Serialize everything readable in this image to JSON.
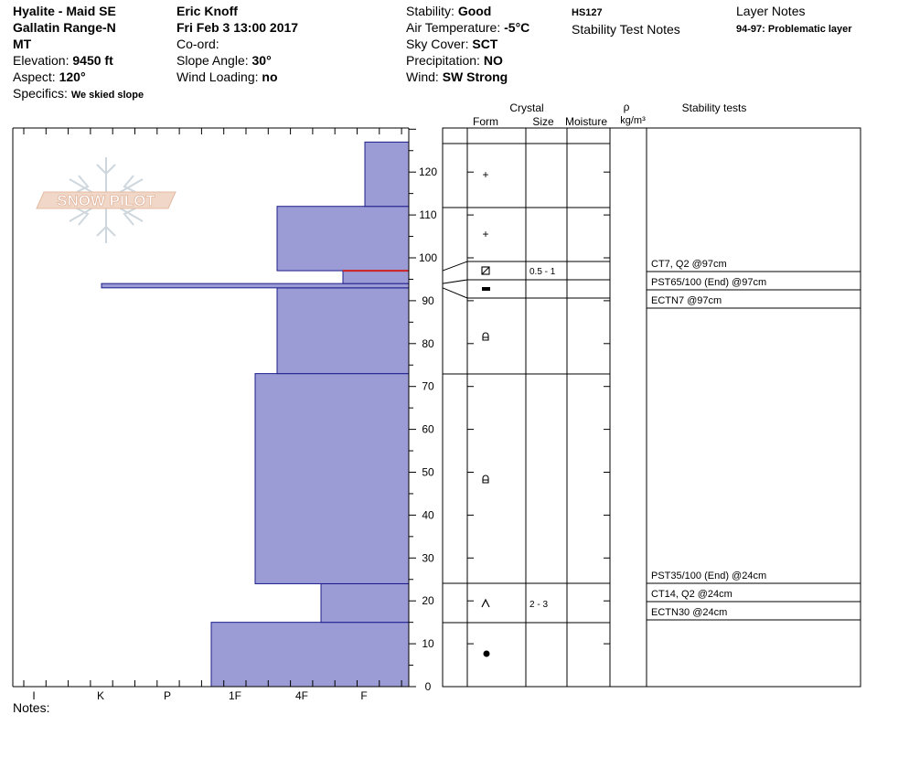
{
  "header": {
    "col1": {
      "location": "Hyalite - Maid SE",
      "range": "Gallatin Range-N",
      "state": "MT",
      "elevation_label": "Elevation: ",
      "elevation": "9450 ft",
      "aspect_label": "Aspect: ",
      "aspect": "120°",
      "specifics_label": "Specifics: ",
      "specifics": "We skied slope"
    },
    "col2": {
      "observer": "Eric Knoff",
      "datetime": "Fri Feb 3 13:00 2017",
      "coord_label": "Co-ord:",
      "slope_label": "Slope Angle: ",
      "slope": "30°",
      "wind_loading_label": "Wind Loading: ",
      "wind_loading": "no"
    },
    "col3": {
      "stability_label": "Stability: ",
      "stability": "Good",
      "air_temp_label": "Air Temperature: ",
      "air_temp": "-5°C",
      "sky_label": "Sky Cover: ",
      "sky": "SCT",
      "precip_label": "Precipitation: ",
      "precip": "NO",
      "wind_label": "Wind:  ",
      "wind": "SW Strong"
    },
    "col4": {
      "hs": "HS127",
      "stability_notes": "Stability Test Notes"
    },
    "col5": {
      "layer_notes_title": "Layer Notes",
      "layer_note_range": "94-97:",
      "layer_note_text": " Problematic layer"
    }
  },
  "columns": {
    "crystal": "Crystal",
    "form": "Form",
    "size": "Size",
    "moisture": "Moisture",
    "rho": "ρ",
    "density_unit": "kg/m³",
    "stability_tests": "Stability tests"
  },
  "logo_text": "SNOW PILOT",
  "notes_label": "Notes:",
  "chart_data": {
    "type": "bar",
    "orientation": "horizontal-step",
    "hardness_axis": [
      "I",
      "K",
      "P",
      "1F",
      "4F",
      "F"
    ],
    "height_axis": {
      "min": 0,
      "max": 130,
      "ticks": [
        0,
        10,
        20,
        30,
        40,
        50,
        60,
        70,
        80,
        90,
        100,
        110,
        120
      ],
      "unit": "cm"
    },
    "total_height": 127,
    "layers": [
      {
        "bottom": 0,
        "top": 15,
        "hardness": "1F-",
        "form": "dot",
        "size": ""
      },
      {
        "bottom": 15,
        "top": 24,
        "hardness": "4F+",
        "form": "caret",
        "size": "2 - 3"
      },
      {
        "bottom": 24,
        "top": 73,
        "hardness": "1F+",
        "form": "mfcr",
        "size": ""
      },
      {
        "bottom": 73,
        "top": 93,
        "hardness": "4F",
        "form": "mfcr",
        "size": ""
      },
      {
        "bottom": 93,
        "top": 94,
        "hardness": "K",
        "form": "bar",
        "size": ""
      },
      {
        "bottom": 94,
        "top": 97,
        "hardness": "F+",
        "form": "boxx",
        "size": "0.5 - 1"
      },
      {
        "bottom": 97,
        "top": 112,
        "hardness": "4F",
        "form": "plus",
        "size": ""
      },
      {
        "bottom": 112,
        "top": 127,
        "hardness": "F",
        "form": "plus",
        "size": ""
      }
    ],
    "problem_layer": {
      "bottom": 94,
      "top": 97
    },
    "stability_tests": [
      {
        "text": "CT7, Q2 @97cm"
      },
      {
        "text": "PST65/100 (End) @97cm"
      },
      {
        "text": "ECTN7 @97cm"
      },
      {
        "text": "PST35/100 (End) @24cm"
      },
      {
        "text": "CT14, Q2 @24cm"
      },
      {
        "text": "ECTN30 @24cm"
      }
    ]
  }
}
